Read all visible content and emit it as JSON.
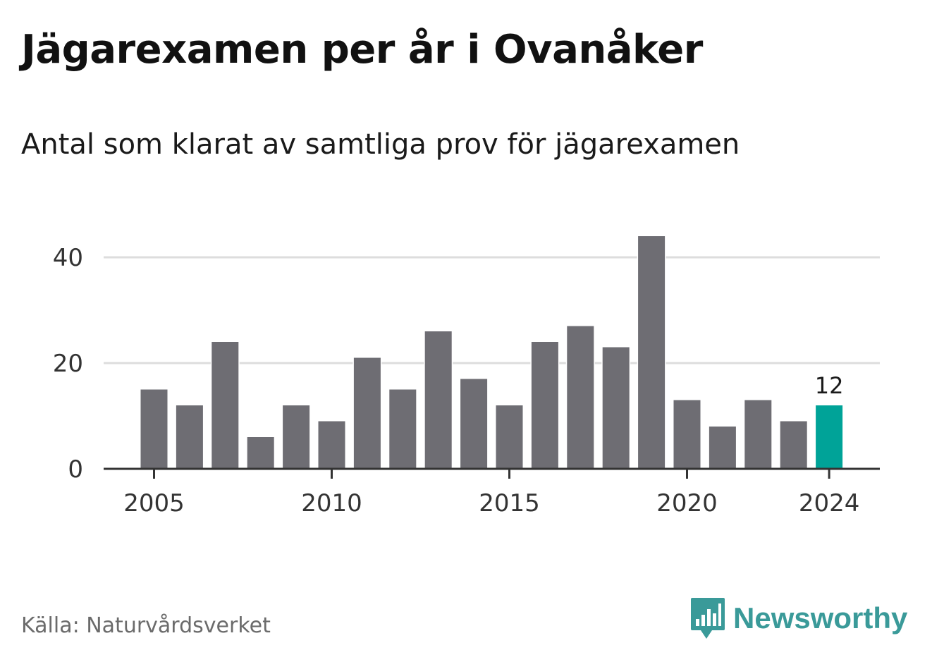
{
  "header": {
    "title": "Jägarexamen per år i Ovanåker",
    "subtitle": "Antal som klarat av samtliga prov för jägarexamen"
  },
  "footer": {
    "source": "Källa: Naturvårdsverket",
    "brand": "Newsworthy",
    "brand_icon": "bar-chart-speech-bubble-icon",
    "brand_color": "#3a9a99"
  },
  "chart_data": {
    "type": "bar",
    "x": [
      2005,
      2006,
      2007,
      2008,
      2009,
      2010,
      2011,
      2012,
      2013,
      2014,
      2015,
      2016,
      2017,
      2018,
      2019,
      2020,
      2021,
      2022,
      2023,
      2024
    ],
    "values": [
      15,
      12,
      24,
      6,
      12,
      9,
      21,
      15,
      26,
      17,
      12,
      24,
      27,
      23,
      44,
      13,
      8,
      13,
      9,
      12
    ],
    "x_ticks": [
      "2005",
      "2010",
      "2015",
      "2020",
      "2024"
    ],
    "y_ticks": [
      "0",
      "20",
      "40"
    ],
    "ylim": [
      0,
      44
    ],
    "grid": true,
    "bar_color": "#6e6d73",
    "highlight_color": "#00a398",
    "highlight_index": 19,
    "highlight_label": "12",
    "xlabel": "",
    "ylabel": ""
  }
}
